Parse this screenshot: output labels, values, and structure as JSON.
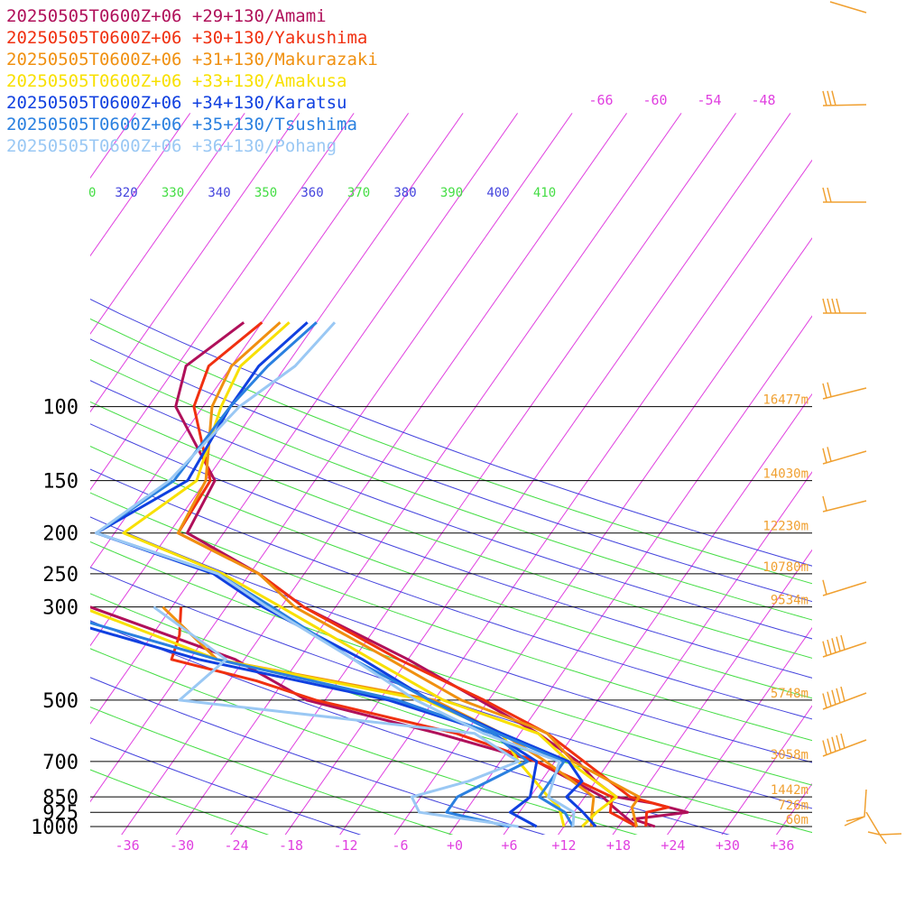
{
  "chart_data": {
    "type": "line",
    "title": "",
    "xlabel": "",
    "ylabel": "",
    "pressure_levels": [
      100,
      150,
      200,
      250,
      300,
      500,
      700,
      850,
      925,
      1000
    ],
    "x_ticks": [
      "-36",
      "-30",
      "-24",
      "-18",
      "-12",
      "-6",
      "+0",
      "+6",
      "+12",
      "+18",
      "+24",
      "+30",
      "+36"
    ],
    "isotherm_labels": [
      "-66",
      "-60",
      "-54",
      "-48"
    ],
    "theta_labels": [
      {
        "text": "0",
        "color": "#44dd44"
      },
      {
        "text": "320",
        "color": "#4444dd"
      },
      {
        "text": "330",
        "color": "#44dd44"
      },
      {
        "text": "340",
        "color": "#4444dd"
      },
      {
        "text": "350",
        "color": "#44dd44"
      },
      {
        "text": "360",
        "color": "#4444dd"
      },
      {
        "text": "370",
        "color": "#44dd44"
      },
      {
        "text": "380",
        "color": "#4444dd"
      },
      {
        "text": "390",
        "color": "#44dd44"
      },
      {
        "text": "400",
        "color": "#4444dd"
      },
      {
        "text": "410",
        "color": "#44dd44"
      }
    ],
    "heights": [
      {
        "p": 100,
        "label": "16477m"
      },
      {
        "p": 150,
        "label": "14030m"
      },
      {
        "p": 200,
        "label": "12230m"
      },
      {
        "p": 250,
        "label": "10780m"
      },
      {
        "p": 300,
        "label": "9534m"
      },
      {
        "p": 500,
        "label": "5748m"
      },
      {
        "p": 700,
        "label": "3058m"
      },
      {
        "p": 850,
        "label": "1442m"
      },
      {
        "p": 925,
        "label": "726m"
      },
      {
        "p": 1000,
        "label": "60m"
      }
    ],
    "series": [
      {
        "name": "20250505T0600Z+06 +29+130/Amami",
        "color": "#b0105a",
        "temp": [
          [
            63,
            -62
          ],
          [
            80,
            -65
          ],
          [
            100,
            -63
          ],
          [
            150,
            -53
          ],
          [
            200,
            -52
          ],
          [
            250,
            -41
          ],
          [
            300,
            -33.5
          ],
          [
            400,
            -18
          ],
          [
            500,
            -7
          ],
          [
            600,
            2
          ],
          [
            700,
            8.5
          ],
          [
            780,
            12
          ],
          [
            850,
            15.5
          ],
          [
            880,
            20
          ],
          [
            925,
            24.5
          ],
          [
            960,
            19
          ],
          [
            1000,
            22
          ]
        ],
        "dew": [
          [
            300,
            -57
          ],
          [
            400,
            -37
          ],
          [
            500,
            -26
          ],
          [
            600,
            -9
          ],
          [
            700,
            4
          ],
          [
            850,
            14
          ],
          [
            900,
            16
          ],
          [
            1000,
            20
          ]
        ]
      },
      {
        "name": "20250505T0600Z+06 +30+130/Yakushima",
        "color": "#f03010",
        "temp": [
          [
            63,
            -60
          ],
          [
            80,
            -62.5
          ],
          [
            100,
            -61
          ],
          [
            150,
            -53.5
          ],
          [
            200,
            -53
          ],
          [
            250,
            -41
          ],
          [
            300,
            -33.5
          ],
          [
            400,
            -19
          ],
          [
            500,
            -6.5
          ],
          [
            600,
            3
          ],
          [
            700,
            9.2
          ],
          [
            850,
            17
          ],
          [
            900,
            22
          ],
          [
            925,
            20
          ],
          [
            1000,
            21
          ]
        ],
        "dew": [
          [
            300,
            -47
          ],
          [
            350,
            -45
          ],
          [
            400,
            -44
          ],
          [
            450,
            -33
          ],
          [
            500,
            -25
          ],
          [
            600,
            -7
          ],
          [
            700,
            4
          ],
          [
            850,
            15
          ],
          [
            925,
            16
          ],
          [
            1000,
            20
          ]
        ]
      },
      {
        "name": "20250505T0600Z+06 +31+130/Makurazaki",
        "color": "#f09010",
        "temp": [
          [
            63,
            -58
          ],
          [
            80,
            -60
          ],
          [
            100,
            -59
          ],
          [
            150,
            -54
          ],
          [
            200,
            -53
          ],
          [
            250,
            -41
          ],
          [
            300,
            -34.5
          ],
          [
            400,
            -20
          ],
          [
            500,
            -9
          ],
          [
            580,
            1
          ],
          [
            600,
            3
          ],
          [
            700,
            8
          ],
          [
            850,
            18
          ],
          [
            900,
            18
          ],
          [
            1000,
            20
          ]
        ],
        "dew": [
          [
            300,
            -49
          ],
          [
            400,
            -39
          ],
          [
            500,
            -12
          ],
          [
            600,
            -2
          ],
          [
            700,
            5
          ],
          [
            850,
            13
          ],
          [
            925,
            14
          ],
          [
            1000,
            15
          ]
        ]
      },
      {
        "name": "20250505T0600Z+06 +33+130/Amakusa",
        "color": "#f8e000",
        "temp": [
          [
            63,
            -57
          ],
          [
            80,
            -59
          ],
          [
            100,
            -58
          ],
          [
            150,
            -55
          ],
          [
            200,
            -59
          ],
          [
            250,
            -45
          ],
          [
            300,
            -36
          ],
          [
            400,
            -22
          ],
          [
            500,
            -11
          ],
          [
            600,
            2
          ],
          [
            700,
            7.5
          ],
          [
            850,
            15.5
          ],
          [
            925,
            14.5
          ],
          [
            1000,
            14
          ]
        ],
        "dew": [
          [
            300,
            -58
          ],
          [
            400,
            -39
          ],
          [
            500,
            -13
          ],
          [
            600,
            -2
          ],
          [
            700,
            2
          ],
          [
            850,
            8
          ],
          [
            900,
            10
          ],
          [
            1000,
            12
          ]
        ]
      },
      {
        "name": "20250505T0600Z+06 +34+130/Karatsu",
        "color": "#1040e0",
        "temp": [
          [
            63,
            -55
          ],
          [
            80,
            -57
          ],
          [
            100,
            -57
          ],
          [
            150,
            -56
          ],
          [
            200,
            -62
          ],
          [
            250,
            -46
          ],
          [
            300,
            -38
          ],
          [
            400,
            -23
          ],
          [
            500,
            -12.5
          ],
          [
            600,
            -2
          ],
          [
            700,
            7.5
          ],
          [
            780,
            10.5
          ],
          [
            850,
            10
          ],
          [
            925,
            13
          ],
          [
            1000,
            15.5
          ]
        ],
        "dew": [
          [
            300,
            -65
          ],
          [
            400,
            -41
          ],
          [
            500,
            -17
          ],
          [
            600,
            -3
          ],
          [
            700,
            4
          ],
          [
            850,
            6
          ],
          [
            925,
            5
          ],
          [
            1000,
            9
          ]
        ]
      },
      {
        "name": "20250505T0600Z+06 +35+130/Tsushima",
        "color": "#2a80e0",
        "temp": [
          [
            63,
            -54
          ],
          [
            80,
            -56
          ],
          [
            100,
            -57
          ],
          [
            150,
            -57.5
          ],
          [
            200,
            -62
          ],
          [
            250,
            -45.5
          ],
          [
            300,
            -37
          ],
          [
            400,
            -24
          ],
          [
            500,
            -12.5
          ],
          [
            600,
            -2.5
          ],
          [
            700,
            7
          ],
          [
            850,
            7
          ],
          [
            925,
            11
          ],
          [
            1000,
            13
          ]
        ],
        "dew": [
          [
            300,
            -63
          ],
          [
            400,
            -39
          ],
          [
            500,
            -16
          ],
          [
            600,
            -3
          ],
          [
            700,
            3
          ],
          [
            850,
            -2
          ],
          [
            925,
            -2
          ],
          [
            1000,
            6
          ]
        ]
      },
      {
        "name": "20250505T0600Z+06 +36+130/Pohang",
        "color": "#9ac8f4",
        "temp": [
          [
            63,
            -52
          ],
          [
            80,
            -53
          ],
          [
            100,
            -56
          ],
          [
            150,
            -58
          ],
          [
            200,
            -62
          ],
          [
            250,
            -45.5
          ],
          [
            300,
            -37.5
          ],
          [
            400,
            -24
          ],
          [
            500,
            -14
          ],
          [
            600,
            -4
          ],
          [
            700,
            6.5
          ],
          [
            850,
            8
          ],
          [
            925,
            12
          ],
          [
            1000,
            13
          ]
        ],
        "dew": [
          [
            300,
            -50
          ],
          [
            400,
            -38
          ],
          [
            500,
            -40
          ],
          [
            600,
            -5
          ],
          [
            700,
            2
          ],
          [
            780,
            -2
          ],
          [
            850,
            -7
          ],
          [
            925,
            -5
          ],
          [
            1000,
            7
          ]
        ]
      }
    ]
  },
  "legend": [
    {
      "text": "20250505T0600Z+06 +29+130/Amami",
      "color": "#b0105a"
    },
    {
      "text": "20250505T0600Z+06 +30+130/Yakushima",
      "color": "#f03010"
    },
    {
      "text": "20250505T0600Z+06 +31+130/Makurazaki",
      "color": "#f09010"
    },
    {
      "text": "20250505T0600Z+06 +33+130/Amakusa",
      "color": "#f8e000"
    },
    {
      "text": "20250505T0600Z+06 +34+130/Karatsu",
      "color": "#1040e0"
    },
    {
      "text": "20250505T0600Z+06 +35+130/Tsushima",
      "color": "#2a80e0"
    },
    {
      "text": "20250505T0600Z+06 +36+130/Pohang",
      "color": "#9ac8f4"
    }
  ],
  "colors": {
    "isotherm": "#e040e0",
    "dry_adiabat_odd": "#4444dd",
    "dry_adiabat_even": "#44dd44",
    "wind_barb": "#f0a030",
    "isobar": "#000000"
  }
}
